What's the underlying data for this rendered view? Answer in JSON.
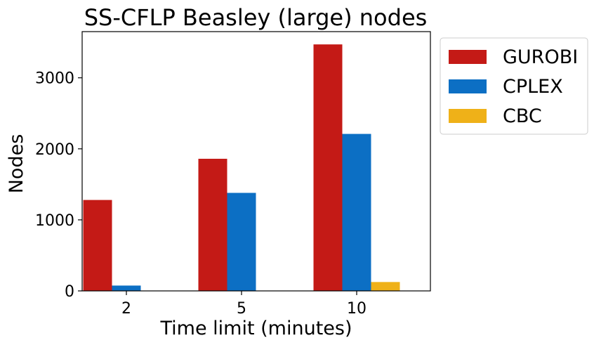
{
  "chart_data": {
    "type": "bar",
    "title": "SS-CFLP Beasley (large) nodes",
    "xlabel": "Time limit (minutes)",
    "ylabel": "Nodes",
    "categories": [
      "2",
      "5",
      "10"
    ],
    "series": [
      {
        "name": "GUROBI",
        "color": "#c41a16",
        "values": [
          1280,
          1860,
          3470
        ]
      },
      {
        "name": "CPLEX",
        "color": "#0c6fc4",
        "values": [
          75,
          1380,
          2210
        ]
      },
      {
        "name": "CBC",
        "color": "#efb118",
        "values": [
          0,
          0,
          125
        ]
      }
    ],
    "ylim": [
      0,
      3650
    ],
    "yticks": [
      0,
      1000,
      2000,
      3000
    ],
    "grid": false,
    "legend_position": "outside-right-top"
  }
}
